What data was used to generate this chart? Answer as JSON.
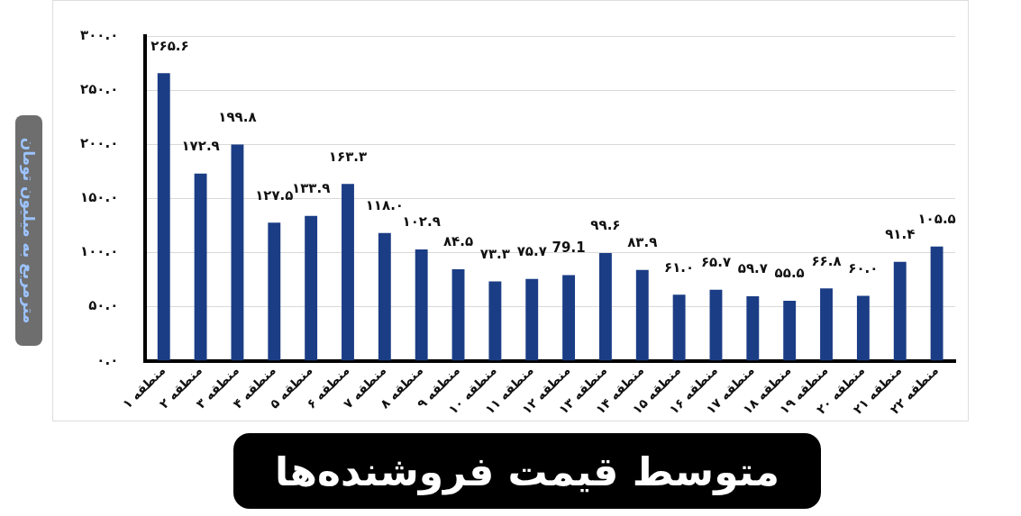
{
  "chart_data": {
    "type": "bar",
    "title": "متوسط قیمت فروشنده‌ها",
    "ylabel": "مترمربع به میلیون تومان",
    "categories": [
      "منطقه ۱",
      "منطقه ۲",
      "منطقه ۳",
      "منطقه ۴",
      "منطقه ۵",
      "منطقه ۶",
      "منطقه ۷",
      "منطقه ۸",
      "منطقه ۹",
      "منطقه ۱۰",
      "منطقه ۱۱",
      "منطقه ۱۲",
      "منطقه ۱۳",
      "منطقه ۱۴",
      "منطقه ۱۵",
      "منطقه ۱۶",
      "منطقه ۱۷",
      "منطقه ۱۸",
      "منطقه ۱۹",
      "منطقه ۲۰",
      "منطقه ۲۱",
      "منطقه ۲۲"
    ],
    "values": [
      265.6,
      172.9,
      199.8,
      127.5,
      133.9,
      163.3,
      118.0,
      102.9,
      84.5,
      73.3,
      75.7,
      79.1,
      99.6,
      83.9,
      61.0,
      65.7,
      59.7,
      55.5,
      66.8,
      60.0,
      91.4,
      105.5
    ],
    "value_labels": [
      "۲۶۵.۶",
      "۱۷۲.۹",
      "۱۹۹.۸",
      "۱۲۷.۵",
      "۱۳۳.۹",
      "۱۶۳.۳",
      "۱۱۸.۰",
      "۱۰۲.۹",
      "۸۴.۵",
      "۷۳.۳",
      "۷۵.۷",
      "79.1",
      "۹۹.۶",
      "۸۳.۹",
      "۶۱.۰",
      "۶۵.۷",
      "۵۹.۷",
      "۵۵.۵",
      "۶۶.۸",
      "۶۰.۰",
      "۹۱.۴",
      "۱۰۵.۵"
    ],
    "color": "#1b3d85",
    "ylim": [
      0,
      300
    ],
    "yticks": [
      {
        "value": 0,
        "label": "۰.۰"
      },
      {
        "value": 50,
        "label": "۵۰.۰"
      },
      {
        "value": 100,
        "label": "۱۰۰.۰"
      },
      {
        "value": 150,
        "label": "۱۵۰.۰"
      },
      {
        "value": 200,
        "label": "۲۰۰.۰"
      },
      {
        "value": 250,
        "label": "۲۵۰.۰"
      },
      {
        "value": 300,
        "label": "۳۰۰.۰"
      }
    ],
    "grid": "y",
    "legend": false
  }
}
